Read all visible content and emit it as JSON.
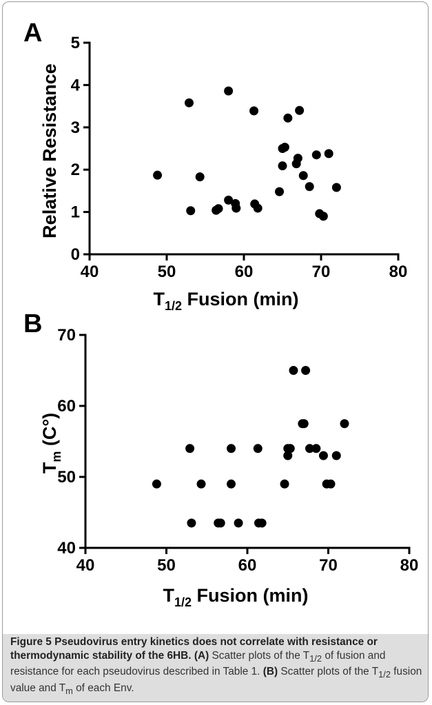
{
  "chart_data": [
    {
      "panel": "A",
      "type": "scatter",
      "xlabel": "T",
      "xlabel_sub": "1/2",
      "xlabel_rest": " Fusion (min)",
      "ylabel": "Relative Resistance",
      "xlim": [
        40,
        80
      ],
      "ylim": [
        0,
        5
      ],
      "xticks": [
        "40",
        "50",
        "60",
        "70",
        "80"
      ],
      "yticks": [
        "0",
        "1",
        "2",
        "3",
        "4",
        "5"
      ],
      "points": [
        [
          48.8,
          1.87
        ],
        [
          52.9,
          3.58
        ],
        [
          53.1,
          1.03
        ],
        [
          54.3,
          1.83
        ],
        [
          56.4,
          1.04
        ],
        [
          56.7,
          1.08
        ],
        [
          58.0,
          3.86
        ],
        [
          58.0,
          1.28
        ],
        [
          58.9,
          1.2
        ],
        [
          59.0,
          1.09
        ],
        [
          61.3,
          3.39
        ],
        [
          61.4,
          1.19
        ],
        [
          61.8,
          1.09
        ],
        [
          64.6,
          1.48
        ],
        [
          65.0,
          2.09
        ],
        [
          65.0,
          2.5
        ],
        [
          65.3,
          2.53
        ],
        [
          65.7,
          3.22
        ],
        [
          66.8,
          2.14
        ],
        [
          67.0,
          2.27
        ],
        [
          67.2,
          3.4
        ],
        [
          67.7,
          1.86
        ],
        [
          68.5,
          1.6
        ],
        [
          69.4,
          2.35
        ],
        [
          69.8,
          0.96
        ],
        [
          70.3,
          0.9
        ],
        [
          71.0,
          2.38
        ],
        [
          72.0,
          1.58
        ]
      ]
    },
    {
      "panel": "B",
      "type": "scatter",
      "xlabel": "T",
      "xlabel_sub": "1/2",
      "xlabel_rest": " Fusion (min)",
      "ylabel": "T",
      "ylabel_sub": "m",
      "ylabel_rest": " (C°)",
      "xlim": [
        40,
        80
      ],
      "ylim": [
        40,
        70
      ],
      "xticks": [
        "40",
        "50",
        "60",
        "70",
        "80"
      ],
      "yticks": [
        "40",
        "50",
        "60",
        "70"
      ],
      "points": [
        [
          48.8,
          49.0
        ],
        [
          52.9,
          54.0
        ],
        [
          53.1,
          43.5
        ],
        [
          54.3,
          49.0
        ],
        [
          56.4,
          43.5
        ],
        [
          56.7,
          43.5
        ],
        [
          58.0,
          54.0
        ],
        [
          58.0,
          49.0
        ],
        [
          58.9,
          43.5
        ],
        [
          61.3,
          54.0
        ],
        [
          61.4,
          43.5
        ],
        [
          61.8,
          43.5
        ],
        [
          64.6,
          49.0
        ],
        [
          65.0,
          53.0
        ],
        [
          65.0,
          54.0
        ],
        [
          65.3,
          54.0
        ],
        [
          65.7,
          65.0
        ],
        [
          66.8,
          57.5
        ],
        [
          67.0,
          57.5
        ],
        [
          67.2,
          65.0
        ],
        [
          67.7,
          54.0
        ],
        [
          68.5,
          54.0
        ],
        [
          69.4,
          53.0
        ],
        [
          69.8,
          49.0
        ],
        [
          70.3,
          49.0
        ],
        [
          71.0,
          53.0
        ],
        [
          72.0,
          57.5
        ]
      ]
    }
  ],
  "caption": {
    "title": "Figure 5 Pseudovirus entry kinetics does not correlate with resistance or thermodynamic stability of the 6HB.",
    "a_label": "(A)",
    "a_text_1": " Scatter plots of the T",
    "a_sub": "1/2",
    "a_text_2": " of fusion and resistance for each pseudovirus described in Table 1. ",
    "b_label": "(B)",
    "b_text_1": " Scatter plots of the T",
    "b_sub": "1/2",
    "b_text_2": " fusion value and T",
    "b_sub2": "m",
    "b_text_3": " of each Env."
  }
}
